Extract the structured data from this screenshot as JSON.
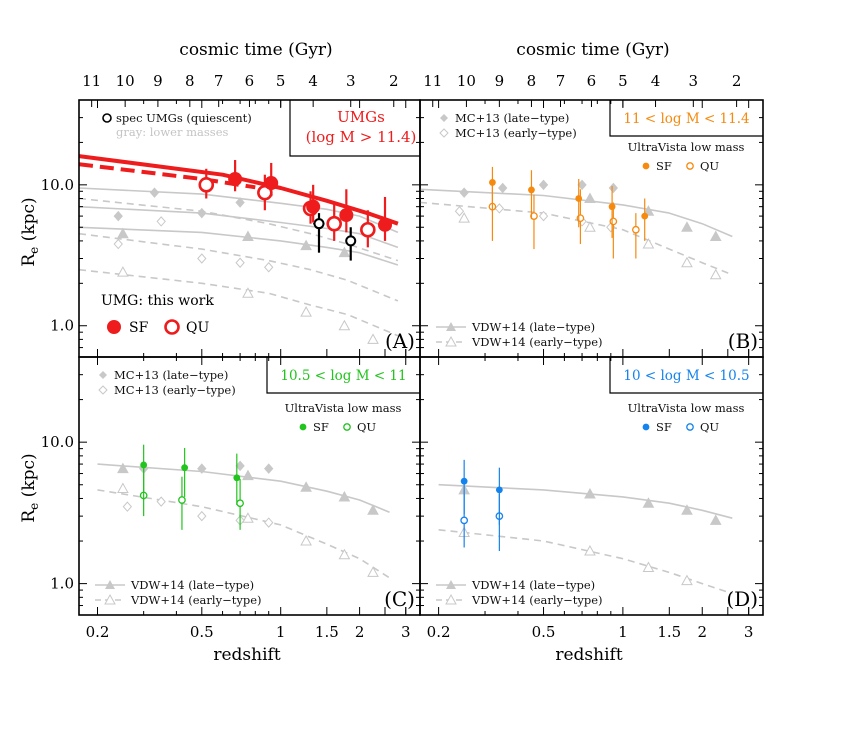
{
  "figure": {
    "top_axis_label": "cosmic time (Gyr)",
    "bottom_axis_label": "redshift",
    "y_axis_label": "R",
    "y_axis_label_sub": "e",
    "y_axis_label_unit": " (kpc)"
  },
  "colors": {
    "umg": "#ee1c1c",
    "high": "#f58a0f",
    "mid": "#22c41e",
    "low": "#1583ee",
    "ref_gray": "#c8c8c8",
    "spec": "#000000"
  },
  "chart_data": [
    {
      "type": "scatter",
      "panel": "A",
      "panel_label": "(A)",
      "box_label": [
        "UMGs",
        "(log M > 11.4)"
      ],
      "x_scale": "log",
      "y_scale": "log",
      "xlim": [
        0.17,
        3.4
      ],
      "ylim": [
        0.6,
        40
      ],
      "xticks": [
        0.2,
        0.5,
        1,
        1.5,
        2,
        3
      ],
      "yticks": [
        1.0,
        10.0
      ],
      "top_ticks": [
        11,
        10,
        9,
        8,
        7,
        6,
        5,
        4,
        3,
        2
      ],
      "legend_top": [
        "spec UMGs (quiescent)",
        "gray: lower masses"
      ],
      "legend_bottom": {
        "title": "UMG: this work",
        "sf": "SF",
        "qu": "QU"
      },
      "series": [
        {
          "name": "UMG SF",
          "style": "sf",
          "color": "umg",
          "x": [
            0.67,
            0.92,
            1.33,
            1.78,
            2.5
          ],
          "y": [
            11.0,
            10.3,
            7.0,
            6.1,
            5.2
          ],
          "err_lo": [
            2.0,
            2.0,
            1.6,
            1.5,
            1.2
          ],
          "err_hi": [
            4.0,
            4.0,
            3.0,
            3.2,
            3.0
          ]
        },
        {
          "name": "UMG QU",
          "style": "qu",
          "color": "umg",
          "x": [
            0.52,
            0.87,
            1.3,
            1.6,
            2.15
          ],
          "y": [
            10.0,
            8.8,
            6.8,
            5.3,
            4.8
          ],
          "err_lo": [
            2.0,
            2.2,
            1.5,
            1.3,
            1.2
          ],
          "err_hi": [
            3.0,
            3.0,
            2.2,
            2.0,
            1.8
          ]
        },
        {
          "name": "spec UMGs (quiescent)",
          "style": "qu",
          "color": "spec",
          "x": [
            1.4,
            1.85
          ],
          "y": [
            5.3,
            4.0
          ],
          "err_lo": [
            2.0,
            1.1
          ],
          "err_hi": [
            1.0,
            1.0
          ],
          "xerr": [
            0.07,
            0.06
          ]
        },
        {
          "name": "UMG fit (SF)",
          "style": "line",
          "color": "umg",
          "x": [
            0.17,
            0.6,
            1.0,
            1.5,
            2.2,
            2.8
          ],
          "y": [
            16.0,
            11.8,
            9.5,
            7.7,
            6.2,
            5.3
          ]
        },
        {
          "name": "UMG fit (QU)",
          "style": "dash",
          "color": "umg",
          "x": [
            0.17,
            0.5,
            0.8
          ],
          "y": [
            14.0,
            11.0,
            9.6
          ]
        },
        {
          "name": "gray late-type",
          "style": "line",
          "color": "ref_gray",
          "x": [
            0.17,
            0.5,
            1.0,
            1.5,
            2.0,
            2.8
          ],
          "y": [
            9.5,
            8.6,
            7.4,
            6.7,
            6.0,
            4.6
          ]
        },
        {
          "name": "gray late-type",
          "style": "line",
          "color": "ref_gray",
          "x": [
            0.17,
            0.5,
            1.0,
            1.5,
            2.0,
            2.8
          ],
          "y": [
            7.0,
            6.3,
            5.4,
            4.9,
            4.5,
            3.6
          ]
        },
        {
          "name": "gray late-type",
          "style": "line",
          "color": "ref_gray",
          "x": [
            0.17,
            0.5,
            1.0,
            1.5,
            2.0,
            2.8
          ],
          "y": [
            5.0,
            4.6,
            4.0,
            3.6,
            3.3,
            2.7
          ]
        },
        {
          "name": "gray early-type",
          "style": "dash",
          "color": "ref_gray",
          "x": [
            0.17,
            0.5,
            0.9,
            1.3,
            1.8,
            2.8
          ],
          "y": [
            8.0,
            6.5,
            5.3,
            4.5,
            3.8,
            2.9
          ]
        },
        {
          "name": "gray early-type",
          "style": "dash",
          "color": "ref_gray",
          "x": [
            0.17,
            0.5,
            0.9,
            1.3,
            1.8,
            2.8
          ],
          "y": [
            4.5,
            3.5,
            2.9,
            2.5,
            2.1,
            1.5
          ]
        },
        {
          "name": "gray early-type",
          "style": "dash",
          "color": "ref_gray",
          "x": [
            0.17,
            0.5,
            0.9,
            1.3,
            1.8,
            2.8
          ],
          "y": [
            2.5,
            2.0,
            1.7,
            1.4,
            1.2,
            0.85
          ]
        },
        {
          "name": "gray late markers",
          "style": "tri",
          "color": "ref_gray",
          "x": [
            0.25,
            0.75,
            1.25,
            1.75
          ],
          "y": [
            4.5,
            4.3,
            3.7,
            3.3
          ]
        },
        {
          "name": "gray early markers",
          "style": "tri_open",
          "color": "ref_gray",
          "x": [
            0.25,
            0.75,
            1.25,
            1.75,
            2.25
          ],
          "y": [
            2.4,
            1.7,
            1.25,
            1.0,
            0.8
          ]
        },
        {
          "name": "gray MC13 late",
          "style": "diamond",
          "color": "ref_gray",
          "x": [
            0.24,
            0.33,
            0.5,
            0.7,
            0.9
          ],
          "y": [
            6.0,
            8.8,
            6.3,
            7.5,
            8.5
          ]
        },
        {
          "name": "gray MC13 early",
          "style": "diamond_open",
          "color": "ref_gray",
          "x": [
            0.24,
            0.35,
            0.5,
            0.7,
            0.9
          ],
          "y": [
            3.8,
            5.5,
            3.0,
            2.8,
            2.6
          ]
        }
      ]
    },
    {
      "type": "scatter",
      "panel": "B",
      "panel_label": "(B)",
      "box_label": [
        "11 < log M < 11.4"
      ],
      "x_scale": "log",
      "y_scale": "log",
      "xlim": [
        0.17,
        3.4
      ],
      "ylim": [
        0.6,
        40
      ],
      "xticks": [
        0.2,
        0.5,
        1,
        1.5,
        2,
        3
      ],
      "yticks": [
        1.0,
        10.0
      ],
      "top_ticks": [
        11,
        10,
        9,
        8,
        7,
        6,
        5,
        4,
        3,
        2
      ],
      "legend_top": [
        "MC+13 (late−type)",
        "MC+13 (early−type)"
      ],
      "ultravista": {
        "title": "UltraVista low mass",
        "sf": "SF",
        "qu": "QU"
      },
      "legend_bottom": [
        "VDW+14 (late−type)",
        "VDW+14 (early−type)"
      ],
      "series": [
        {
          "name": "UltraVista SF",
          "style": "sf_small",
          "color": "high",
          "x": [
            0.32,
            0.45,
            0.68,
            0.91,
            1.21
          ],
          "y": [
            10.4,
            9.2,
            8.0,
            7.0,
            6.0
          ],
          "err_lo": [
            4.0,
            3.5,
            3.0,
            2.8,
            2.0
          ],
          "err_hi": [
            3.0,
            3.5,
            3.0,
            2.8,
            2.0
          ]
        },
        {
          "name": "UltraVista QU",
          "style": "qu_small",
          "color": "high",
          "x": [
            0.32,
            0.46,
            0.69,
            0.92,
            1.12
          ],
          "y": [
            7.0,
            6.0,
            5.8,
            5.5,
            4.8
          ],
          "err_lo": [
            3.0,
            2.5,
            2.0,
            2.5,
            1.8
          ],
          "err_hi": [
            4.0,
            2.5,
            3.5,
            2.0,
            1.5
          ]
        },
        {
          "name": "VDW+14 (late-type)",
          "style": "line",
          "color": "ref_gray",
          "x": [
            0.17,
            0.5,
            1.0,
            1.5,
            2.0,
            2.6
          ],
          "y": [
            9.3,
            8.4,
            7.2,
            6.3,
            5.3,
            4.3
          ]
        },
        {
          "name": "VDW+14 (early-type)",
          "style": "dash",
          "color": "ref_gray",
          "x": [
            0.17,
            0.5,
            1.0,
            1.5,
            2.0,
            2.6
          ],
          "y": [
            7.5,
            6.3,
            4.8,
            3.5,
            2.8,
            2.3
          ]
        },
        {
          "name": "VDW+14 late markers",
          "style": "tri",
          "color": "ref_gray",
          "x": [
            0.75,
            1.25,
            1.75,
            2.25
          ],
          "y": [
            8.0,
            6.5,
            5.0,
            4.3
          ]
        },
        {
          "name": "VDW+14 early markers",
          "style": "tri_open",
          "color": "ref_gray",
          "x": [
            0.25,
            0.75,
            1.25,
            1.75,
            2.25
          ],
          "y": [
            5.8,
            5.0,
            3.8,
            2.8,
            2.3
          ]
        },
        {
          "name": "MC+13 (late-type)",
          "style": "diamond",
          "color": "ref_gray",
          "x": [
            0.25,
            0.35,
            0.5,
            0.7,
            0.92
          ],
          "y": [
            8.8,
            9.5,
            10.0,
            10.0,
            9.5
          ]
        },
        {
          "name": "MC+13 (early-type)",
          "style": "diamond_open",
          "color": "ref_gray",
          "x": [
            0.24,
            0.34,
            0.5,
            0.7,
            0.9
          ],
          "y": [
            6.5,
            6.8,
            6.0,
            5.5,
            5.0
          ]
        }
      ]
    },
    {
      "type": "scatter",
      "panel": "C",
      "panel_label": "(C)",
      "box_label": [
        "10.5 < log M < 11"
      ],
      "x_scale": "log",
      "y_scale": "log",
      "xlim": [
        0.17,
        3.4
      ],
      "ylim": [
        0.6,
        40
      ],
      "xticks": [
        0.2,
        0.5,
        1,
        1.5,
        2,
        3
      ],
      "yticks": [
        1.0,
        10.0
      ],
      "legend_top": [
        "MC+13 (late−type)",
        "MC+13 (early−type)"
      ],
      "ultravista": {
        "title": "UltraVista low mass",
        "sf": "SF",
        "qu": "QU"
      },
      "legend_bottom": [
        "VDW+14 (late−type)",
        "VDW+14 (early−type)"
      ],
      "series": [
        {
          "name": "UltraVista SF",
          "style": "sf_small",
          "color": "mid",
          "x": [
            0.3,
            0.43,
            0.68
          ],
          "y": [
            6.9,
            6.6,
            5.6
          ],
          "err_lo": [
            3.0,
            2.5,
            2.0
          ],
          "err_hi": [
            2.7,
            2.5,
            2.7
          ]
        },
        {
          "name": "UltraVista QU",
          "style": "qu_small",
          "color": "mid",
          "x": [
            0.3,
            0.42,
            0.7
          ],
          "y": [
            4.2,
            3.9,
            3.7
          ],
          "err_lo": [
            1.2,
            1.5,
            1.3
          ],
          "err_hi": [
            2.5,
            1.8,
            1.8
          ]
        },
        {
          "name": "VDW+14 (late-type)",
          "style": "line",
          "color": "ref_gray",
          "x": [
            0.2,
            0.5,
            1.0,
            1.5,
            2.0,
            2.6
          ],
          "y": [
            7.0,
            6.2,
            5.3,
            4.5,
            3.9,
            3.2
          ]
        },
        {
          "name": "VDW+14 (early-type)",
          "style": "dash",
          "color": "ref_gray",
          "x": [
            0.2,
            0.5,
            1.0,
            1.5,
            2.0,
            2.6
          ],
          "y": [
            4.6,
            3.5,
            2.6,
            1.9,
            1.5,
            1.1
          ]
        },
        {
          "name": "VDW+14 late markers",
          "style": "tri",
          "color": "ref_gray",
          "x": [
            0.25,
            0.75,
            1.25,
            1.75,
            2.25
          ],
          "y": [
            6.5,
            5.8,
            4.8,
            4.1,
            3.3
          ]
        },
        {
          "name": "VDW+14 early markers",
          "style": "tri_open",
          "color": "ref_gray",
          "x": [
            0.25,
            0.75,
            1.25,
            1.75,
            2.25
          ],
          "y": [
            4.7,
            2.9,
            2.0,
            1.6,
            1.2
          ]
        },
        {
          "name": "MC+13 (late-type)",
          "style": "diamond",
          "color": "ref_gray",
          "x": [
            0.3,
            0.5,
            0.7,
            0.9
          ],
          "y": [
            6.5,
            6.5,
            6.8,
            6.5
          ]
        },
        {
          "name": "MC+13 (early-type)",
          "style": "diamond_open",
          "color": "ref_gray",
          "x": [
            0.26,
            0.35,
            0.5,
            0.7,
            0.9
          ],
          "y": [
            3.5,
            3.8,
            3.0,
            2.8,
            2.7
          ]
        }
      ]
    },
    {
      "type": "scatter",
      "panel": "D",
      "panel_label": "(D)",
      "box_label": [
        "10 < log M < 10.5"
      ],
      "x_scale": "log",
      "y_scale": "log",
      "xlim": [
        0.17,
        3.4
      ],
      "ylim": [
        0.6,
        40
      ],
      "xticks": [
        0.2,
        0.5,
        1,
        1.5,
        2,
        3
      ],
      "yticks": [
        1.0,
        10.0
      ],
      "ultravista": {
        "title": "UltraVista low mass",
        "sf": "SF",
        "qu": "QU"
      },
      "legend_bottom": [
        "VDW+14 (late−type)",
        "VDW+14 (early−type)"
      ],
      "series": [
        {
          "name": "UltraVista SF",
          "style": "sf_small",
          "color": "low",
          "x": [
            0.25,
            0.34
          ],
          "y": [
            5.3,
            4.6
          ],
          "err_lo": [
            2.2,
            2.0
          ],
          "err_hi": [
            2.2,
            2.0
          ]
        },
        {
          "name": "UltraVista QU",
          "style": "qu_small",
          "color": "low",
          "x": [
            0.25,
            0.34
          ],
          "y": [
            2.8,
            3.0
          ],
          "err_lo": [
            1.0,
            1.3
          ],
          "err_hi": [
            1.5,
            1.3
          ]
        },
        {
          "name": "VDW+14 (late-type)",
          "style": "line",
          "color": "ref_gray",
          "x": [
            0.2,
            0.5,
            1.0,
            1.5,
            2.0,
            2.6
          ],
          "y": [
            5.0,
            4.6,
            4.1,
            3.7,
            3.3,
            2.9
          ]
        },
        {
          "name": "VDW+14 (early-type)",
          "style": "dash",
          "color": "ref_gray",
          "x": [
            0.2,
            0.5,
            1.0,
            1.5,
            2.0,
            2.6
          ],
          "y": [
            2.4,
            2.0,
            1.5,
            1.2,
            1.0,
            0.85
          ]
        },
        {
          "name": "VDW+14 late markers",
          "style": "tri",
          "color": "ref_gray",
          "x": [
            0.25,
            0.75,
            1.25,
            1.75,
            2.25
          ],
          "y": [
            4.6,
            4.3,
            3.7,
            3.3,
            2.8
          ]
        },
        {
          "name": "VDW+14 early markers",
          "style": "tri_open",
          "color": "ref_gray",
          "x": [
            0.25,
            0.75,
            1.25,
            1.75
          ],
          "y": [
            2.3,
            1.7,
            1.3,
            1.05
          ]
        }
      ]
    }
  ]
}
